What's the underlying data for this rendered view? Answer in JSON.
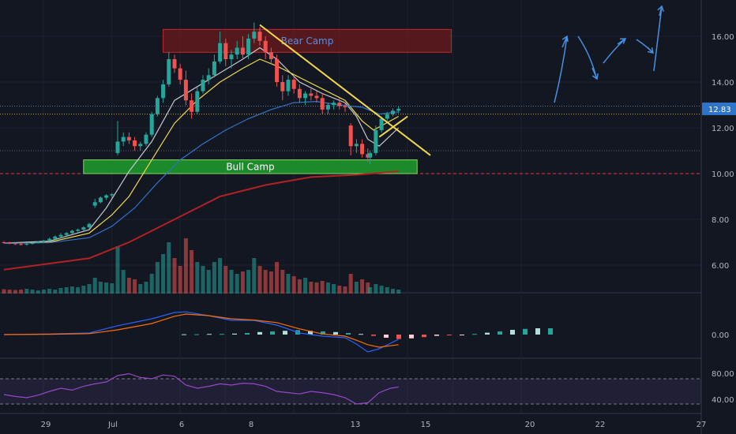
{
  "chart_data": {
    "type": "candlestick",
    "price_axis": {
      "ticks": [
        "16.00",
        "14.00",
        "12.00",
        "10.00",
        "8.00",
        "6.00"
      ],
      "values": [
        16,
        14,
        12,
        10,
        8,
        6
      ],
      "range": [
        4.6,
        17.5
      ]
    },
    "last_price_label": "12.83",
    "time_axis": {
      "ticks": [
        "29",
        "Jul",
        "6",
        "8",
        "13",
        "15",
        "20",
        "22",
        "27"
      ],
      "day_index": [
        0,
        3,
        6,
        8,
        11,
        13,
        16,
        18,
        21
      ]
    },
    "candles": [
      [
        0,
        7.0,
        7.05,
        6.95,
        6.98
      ],
      [
        0.25,
        6.98,
        7.02,
        6.92,
        6.95
      ],
      [
        0.5,
        6.95,
        7.0,
        6.88,
        6.92
      ],
      [
        0.75,
        6.92,
        6.98,
        6.86,
        6.9
      ],
      [
        1,
        6.9,
        6.96,
        6.85,
        6.93
      ],
      [
        1.25,
        6.93,
        7.0,
        6.9,
        6.97
      ],
      [
        1.5,
        6.97,
        7.05,
        6.94,
        7.02
      ],
      [
        1.75,
        7.02,
        7.1,
        7.0,
        7.08
      ],
      [
        2,
        7.08,
        7.2,
        7.05,
        7.15
      ],
      [
        2.25,
        7.15,
        7.3,
        7.1,
        7.25
      ],
      [
        2.5,
        7.25,
        7.4,
        7.2,
        7.32
      ],
      [
        2.75,
        7.32,
        7.45,
        7.28,
        7.4
      ],
      [
        3,
        7.4,
        7.55,
        7.35,
        7.5
      ],
      [
        3.25,
        7.5,
        7.6,
        7.45,
        7.55
      ],
      [
        3.5,
        7.55,
        7.7,
        7.5,
        7.65
      ],
      [
        3.75,
        7.65,
        7.85,
        7.6,
        7.8
      ],
      [
        4,
        8.6,
        8.9,
        8.5,
        8.75
      ],
      [
        4.25,
        8.75,
        9.0,
        8.7,
        8.95
      ],
      [
        4.5,
        8.95,
        9.1,
        8.85,
        9.05
      ],
      [
        4.75,
        9.05,
        9.15,
        8.95,
        9.1
      ],
      [
        5,
        10.9,
        12.3,
        10.8,
        11.4
      ],
      [
        5.25,
        11.4,
        11.8,
        11.2,
        11.6
      ],
      [
        5.5,
        11.6,
        11.8,
        11.3,
        11.45
      ],
      [
        5.75,
        11.45,
        11.6,
        11.0,
        11.2
      ],
      [
        6,
        11.2,
        11.4,
        11.0,
        11.3
      ],
      [
        6.25,
        11.3,
        11.8,
        11.2,
        11.7
      ],
      [
        6.5,
        11.7,
        12.7,
        11.6,
        12.6
      ],
      [
        6.75,
        12.6,
        13.4,
        12.5,
        13.3
      ],
      [
        7,
        13.3,
        14.1,
        13.1,
        13.9
      ],
      [
        7.25,
        13.9,
        15.3,
        13.8,
        15.0
      ],
      [
        7.5,
        15.0,
        15.2,
        14.4,
        14.6
      ],
      [
        7.75,
        14.6,
        14.8,
        13.9,
        14.1
      ],
      [
        8,
        14.1,
        14.5,
        13.0,
        13.2
      ],
      [
        8.25,
        13.2,
        13.5,
        12.4,
        12.7
      ],
      [
        8.5,
        12.7,
        13.8,
        12.6,
        13.6
      ],
      [
        8.75,
        13.6,
        14.3,
        13.5,
        14.1
      ],
      [
        9,
        14.1,
        14.6,
        13.9,
        14.3
      ],
      [
        9.25,
        14.3,
        15.2,
        14.2,
        14.9
      ],
      [
        9.5,
        14.9,
        16.2,
        14.8,
        15.7
      ],
      [
        9.75,
        15.7,
        15.9,
        14.7,
        15.0
      ],
      [
        10,
        15.0,
        15.4,
        14.6,
        15.2
      ],
      [
        10.25,
        15.2,
        15.8,
        15.0,
        15.5
      ],
      [
        10.5,
        15.5,
        16.0,
        15.0,
        15.2
      ],
      [
        10.75,
        15.2,
        16.1,
        15.0,
        15.9
      ],
      [
        11,
        15.9,
        16.6,
        15.7,
        16.2
      ],
      [
        11.25,
        16.2,
        16.4,
        15.6,
        15.8
      ],
      [
        11.5,
        15.8,
        16.0,
        15.0,
        15.3
      ],
      [
        11.75,
        15.3,
        15.5,
        14.8,
        15.0
      ],
      [
        12,
        15.0,
        15.2,
        13.8,
        14.0
      ],
      [
        12.25,
        14.0,
        14.3,
        13.2,
        13.6
      ],
      [
        12.5,
        13.6,
        14.3,
        13.4,
        14.1
      ],
      [
        12.75,
        14.1,
        14.2,
        13.5,
        13.7
      ],
      [
        13,
        13.7,
        13.9,
        13.1,
        13.3
      ],
      [
        13.25,
        13.3,
        13.6,
        13.0,
        13.5
      ],
      [
        13.5,
        13.5,
        13.7,
        13.2,
        13.4
      ],
      [
        13.75,
        13.4,
        13.6,
        13.1,
        13.3
      ],
      [
        14,
        13.3,
        13.5,
        12.6,
        12.8
      ],
      [
        14.25,
        12.8,
        13.1,
        12.6,
        13.0
      ],
      [
        14.5,
        13.0,
        13.2,
        12.8,
        13.1
      ],
      [
        14.75,
        13.1,
        13.3,
        12.8,
        12.95
      ],
      [
        15,
        12.95,
        13.1,
        12.7,
        12.9
      ],
      [
        15.25,
        12.1,
        12.2,
        10.8,
        11.2
      ],
      [
        15.5,
        11.2,
        11.5,
        10.9,
        11.3
      ],
      [
        15.75,
        11.3,
        11.5,
        10.7,
        10.85
      ],
      [
        16,
        10.85,
        11.1,
        10.5,
        10.7
      ],
      [
        16.1,
        10.7,
        11.0,
        10.4,
        10.9
      ],
      [
        16.35,
        10.9,
        12.1,
        10.8,
        11.9
      ],
      [
        16.6,
        11.9,
        12.5,
        11.8,
        12.4
      ],
      [
        16.85,
        12.4,
        12.7,
        12.3,
        12.6
      ],
      [
        17.1,
        12.6,
        12.85,
        12.5,
        12.75
      ],
      [
        17.35,
        12.75,
        12.95,
        12.65,
        12.83
      ]
    ],
    "volume": [
      5.5,
      5,
      4.5,
      5,
      6,
      5,
      4,
      5,
      6,
      5,
      7,
      8,
      9,
      8,
      10,
      12,
      20,
      15,
      14,
      13,
      60,
      30,
      20,
      18,
      12,
      15,
      25,
      40,
      50,
      65,
      45,
      35,
      70,
      55,
      40,
      35,
      30,
      40,
      45,
      35,
      30,
      25,
      28,
      30,
      45,
      35,
      30,
      28,
      40,
      30,
      25,
      22,
      18,
      20,
      15,
      14,
      16,
      14,
      12,
      10,
      9,
      25,
      15,
      18,
      14,
      8,
      12,
      10,
      8,
      6,
      5
    ],
    "moving_averages": [
      {
        "color": "#c8c8c8",
        "points": [
          [
            0,
            6.96
          ],
          [
            2,
            7.05
          ],
          [
            3.75,
            7.55
          ],
          [
            4.5,
            8.5
          ],
          [
            5.5,
            10.1
          ],
          [
            6.5,
            11.4
          ],
          [
            7.5,
            13.2
          ],
          [
            8.5,
            13.8
          ],
          [
            9.5,
            14.4
          ],
          [
            10.5,
            15.0
          ],
          [
            11.25,
            15.5
          ],
          [
            12,
            15.0
          ],
          [
            13,
            14.0
          ],
          [
            14,
            13.5
          ],
          [
            15,
            13.1
          ],
          [
            15.5,
            12.5
          ],
          [
            16,
            11.5
          ],
          [
            16.5,
            11.2
          ],
          [
            17.35,
            12.0
          ]
        ]
      },
      {
        "color": "#f2d84a",
        "points": [
          [
            0,
            6.95
          ],
          [
            2,
            7.0
          ],
          [
            3.75,
            7.4
          ],
          [
            4.75,
            8.2
          ],
          [
            5.5,
            9.0
          ],
          [
            6.5,
            10.6
          ],
          [
            7.5,
            12.2
          ],
          [
            8.5,
            13.2
          ],
          [
            9.5,
            14.0
          ],
          [
            10.5,
            14.6
          ],
          [
            11.25,
            15.0
          ],
          [
            12,
            14.7
          ],
          [
            13,
            14.2
          ],
          [
            14,
            13.7
          ],
          [
            15,
            13.2
          ],
          [
            15.75,
            12.3
          ],
          [
            16.25,
            11.9
          ],
          [
            17.35,
            12.5
          ]
        ]
      },
      {
        "color": "#2e74c9",
        "points": [
          [
            0,
            6.95
          ],
          [
            2,
            6.98
          ],
          [
            3.75,
            7.2
          ],
          [
            4.75,
            7.7
          ],
          [
            5.75,
            8.5
          ],
          [
            6.75,
            9.6
          ],
          [
            7.75,
            10.6
          ],
          [
            8.75,
            11.3
          ],
          [
            9.75,
            11.9
          ],
          [
            10.75,
            12.4
          ],
          [
            11.75,
            12.8
          ],
          [
            12.75,
            13.1
          ],
          [
            13.75,
            13.15
          ],
          [
            14.75,
            13.0
          ],
          [
            15.75,
            12.9
          ],
          [
            16.5,
            12.6
          ],
          [
            17.35,
            12.7
          ]
        ]
      },
      {
        "color": "#b22222",
        "points": [
          [
            0,
            5.8
          ],
          [
            3.75,
            6.3
          ],
          [
            5.5,
            7.0
          ],
          [
            7.5,
            8.0
          ],
          [
            9.5,
            9.0
          ],
          [
            11.5,
            9.5
          ],
          [
            13.5,
            9.85
          ],
          [
            15.5,
            9.95
          ],
          [
            17.35,
            10.1
          ]
        ]
      }
    ],
    "reference_lines": [
      {
        "value": 12.95,
        "color": "#5b7a99",
        "style": "dotted"
      },
      {
        "value": 12.6,
        "color": "#c7a93b",
        "style": "dotted"
      },
      {
        "value": 11.0,
        "color": "#5b6470",
        "style": "dotted"
      },
      {
        "value": 10.0,
        "color": "#e53935",
        "style": "dashed"
      }
    ],
    "zones": [
      {
        "label": "Bear Camp",
        "x1": 7.0,
        "x2": 21.75,
        "top": 16.3,
        "bottom": 15.3,
        "fill": "#8b1a1a",
        "text": "#5b8ede"
      },
      {
        "label": "Bull Camp",
        "x1": 3.5,
        "x2": 20.25,
        "top": 10.6,
        "bottom": 10.0,
        "fill": "#1f9e2c",
        "text": "#ffffff"
      }
    ],
    "trendlines": [
      {
        "color": "#f2d84a",
        "points": [
          [
            11.25,
            16.5
          ],
          [
            18.75,
            10.8
          ]
        ]
      },
      {
        "color": "#f2d84a",
        "points": [
          [
            16.5,
            11.6
          ],
          [
            17.75,
            12.5
          ]
        ]
      }
    ],
    "projection_path": {
      "color": "#4a90e2",
      "points": [
        [
          17.35,
          13.1
        ],
        [
          18.25,
          15.4
        ],
        [
          17.95,
          16.4
        ],
        [
          18.75,
          14.6
        ],
        [
          19.0,
          14.3
        ],
        [
          19.5,
          15.6
        ],
        [
          19.25,
          15.1
        ],
        [
          20.25,
          16.2
        ],
        [
          20.75,
          15.5
        ],
        [
          21.25,
          15.4
        ],
        [
          21.75,
          16.7
        ],
        [
          22.5,
          17.4
        ]
      ]
    },
    "macd": {
      "zero_label": "0.00",
      "macd_line": [
        [
          0,
          0
        ],
        [
          2,
          0.02
        ],
        [
          3.75,
          0.05
        ],
        [
          5,
          0.28
        ],
        [
          6.5,
          0.5
        ],
        [
          7.5,
          0.7
        ],
        [
          8,
          0.72
        ],
        [
          9,
          0.6
        ],
        [
          10,
          0.45
        ],
        [
          11,
          0.45
        ],
        [
          12,
          0.3
        ],
        [
          13,
          0.05
        ],
        [
          14,
          -0.05
        ],
        [
          15,
          -0.1
        ],
        [
          15.5,
          -0.3
        ],
        [
          16,
          -0.55
        ],
        [
          16.5,
          -0.45
        ],
        [
          17.35,
          -0.15
        ]
      ],
      "signal_line": [
        [
          0,
          0
        ],
        [
          2,
          0.01
        ],
        [
          3.75,
          0.03
        ],
        [
          5,
          0.15
        ],
        [
          6.5,
          0.35
        ],
        [
          7.5,
          0.58
        ],
        [
          8,
          0.65
        ],
        [
          9,
          0.6
        ],
        [
          10,
          0.5
        ],
        [
          11,
          0.46
        ],
        [
          12,
          0.38
        ],
        [
          13,
          0.18
        ],
        [
          14,
          0.02
        ],
        [
          15,
          -0.05
        ],
        [
          15.5,
          -0.18
        ],
        [
          16,
          -0.32
        ],
        [
          16.5,
          -0.4
        ],
        [
          17.35,
          -0.32
        ]
      ],
      "histogram": [
        0.01,
        0.01,
        0.02,
        0.02,
        0.03,
        0.05,
        0.08,
        0.1,
        0.12,
        0.14,
        0.12,
        0.1,
        0.08,
        0.05,
        0.02,
        -0.04,
        -0.1,
        -0.14,
        -0.12,
        -0.08,
        -0.04,
        -0.02,
        -0.01,
        0.02,
        0.06,
        0.1,
        0.15,
        0.18,
        0.2,
        0.2
      ]
    },
    "rsi": {
      "labels": [
        "80.00",
        "40.00"
      ],
      "levels": [
        70,
        30
      ],
      "color": "#9b45c9",
      "points": [
        [
          0,
          45
        ],
        [
          0.5,
          42
        ],
        [
          1,
          40
        ],
        [
          1.5,
          44
        ],
        [
          2,
          50
        ],
        [
          2.5,
          55
        ],
        [
          3,
          52
        ],
        [
          3.5,
          58
        ],
        [
          4,
          62
        ],
        [
          4.5,
          65
        ],
        [
          5,
          75
        ],
        [
          5.5,
          78
        ],
        [
          6,
          72
        ],
        [
          6.5,
          70
        ],
        [
          7,
          76
        ],
        [
          7.5,
          74
        ],
        [
          8,
          60
        ],
        [
          8.5,
          55
        ],
        [
          9,
          58
        ],
        [
          9.5,
          62
        ],
        [
          10,
          60
        ],
        [
          10.5,
          63
        ],
        [
          11,
          62
        ],
        [
          11.5,
          58
        ],
        [
          12,
          50
        ],
        [
          12.5,
          48
        ],
        [
          13,
          46
        ],
        [
          13.5,
          50
        ],
        [
          14,
          48
        ],
        [
          14.5,
          45
        ],
        [
          15,
          40
        ],
        [
          15.5,
          30
        ],
        [
          16,
          32
        ],
        [
          16.5,
          48
        ],
        [
          17,
          55
        ],
        [
          17.35,
          57
        ]
      ]
    }
  }
}
